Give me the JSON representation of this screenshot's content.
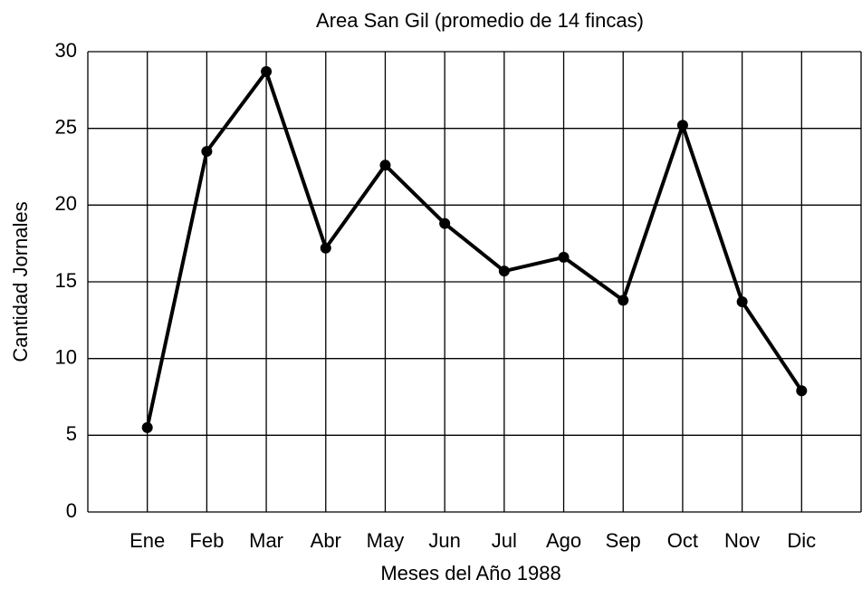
{
  "chart_data": {
    "type": "line",
    "title": "Area San Gil (promedio de 14 fincas)",
    "x_label": "Meses del Año 1988",
    "y_label": "Cantidad Jornales",
    "categories": [
      "Ene",
      "Feb",
      "Mar",
      "Abr",
      "May",
      "Jun",
      "Jul",
      "Ago",
      "Sep",
      "Oct",
      "Nov",
      "Dic"
    ],
    "series": [
      {
        "name": "Area San Gil",
        "color": "#000000",
        "values": [
          5.5,
          23.5,
          28.7,
          17.2,
          22.6,
          18.8,
          15.7,
          16.6,
          13.8,
          25.2,
          13.7,
          7.9
        ]
      }
    ],
    "ylim": [
      0,
      30
    ],
    "yticks": [
      0,
      5,
      10,
      15,
      20,
      25,
      30
    ],
    "grid": true
  }
}
